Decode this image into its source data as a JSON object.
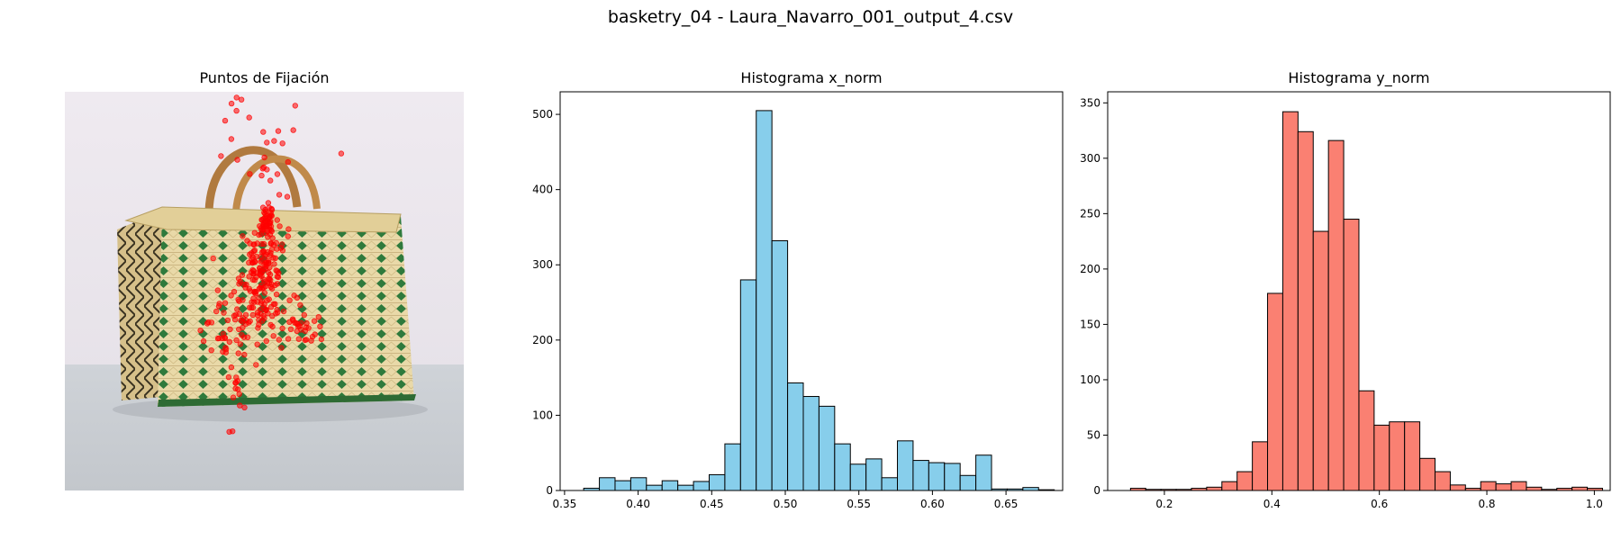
{
  "figure": {
    "suptitle": "basketry_04 - Laura_Navarro_001_output_4.csv"
  },
  "image_panel": {
    "title": "Puntos de Fijación",
    "image_description_icon": "woven-basket-photo",
    "point_color": "#ff0000"
  },
  "chart_data": [
    {
      "type": "bar",
      "title": "Histograma x_norm",
      "xlabel": "",
      "ylabel": "",
      "bar_color": "#87ceeb",
      "edge_color": "#000000",
      "xlim": [
        0.347,
        0.6885
      ],
      "ylim": [
        0,
        530
      ],
      "xticks": [
        0.35,
        0.4,
        0.45,
        0.5,
        0.55,
        0.6,
        0.65
      ],
      "xtick_labels": [
        "0.35",
        "0.40",
        "0.45",
        "0.50",
        "0.55",
        "0.60",
        "0.65"
      ],
      "yticks": [
        0,
        100,
        200,
        300,
        400,
        500
      ],
      "ytick_labels": [
        "0",
        "100",
        "200",
        "300",
        "400",
        "500"
      ],
      "bins_start": 0.363,
      "bin_width": 0.01066,
      "values": [
        3,
        17,
        13,
        17,
        7,
        13,
        7,
        12,
        21,
        62,
        280,
        505,
        332,
        143,
        125,
        112,
        62,
        35,
        42,
        17,
        66,
        40,
        37,
        36,
        20,
        47,
        2,
        2,
        4,
        1
      ]
    },
    {
      "type": "bar",
      "title": "Histograma y_norm",
      "xlabel": "",
      "ylabel": "",
      "bar_color": "#fa8072",
      "edge_color": "#000000",
      "xlim": [
        0.0945,
        1.0295
      ],
      "ylim": [
        0,
        360
      ],
      "xticks": [
        0.2,
        0.4,
        0.6,
        0.8,
        1.0
      ],
      "xtick_labels": [
        "0.2",
        "0.4",
        "0.6",
        "0.8",
        "1.0"
      ],
      "yticks": [
        0,
        50,
        100,
        150,
        200,
        250,
        300,
        350
      ],
      "ytick_labels": [
        "0",
        "50",
        "100",
        "150",
        "200",
        "250",
        "300",
        "350"
      ],
      "bins_start": 0.137,
      "bin_width": 0.02833,
      "values": [
        2,
        1,
        1,
        1,
        2,
        3,
        8,
        17,
        44,
        178,
        342,
        324,
        234,
        316,
        245,
        90,
        59,
        62,
        62,
        29,
        17,
        5,
        2,
        8,
        6,
        8,
        3,
        1,
        2,
        3,
        2
      ]
    }
  ]
}
